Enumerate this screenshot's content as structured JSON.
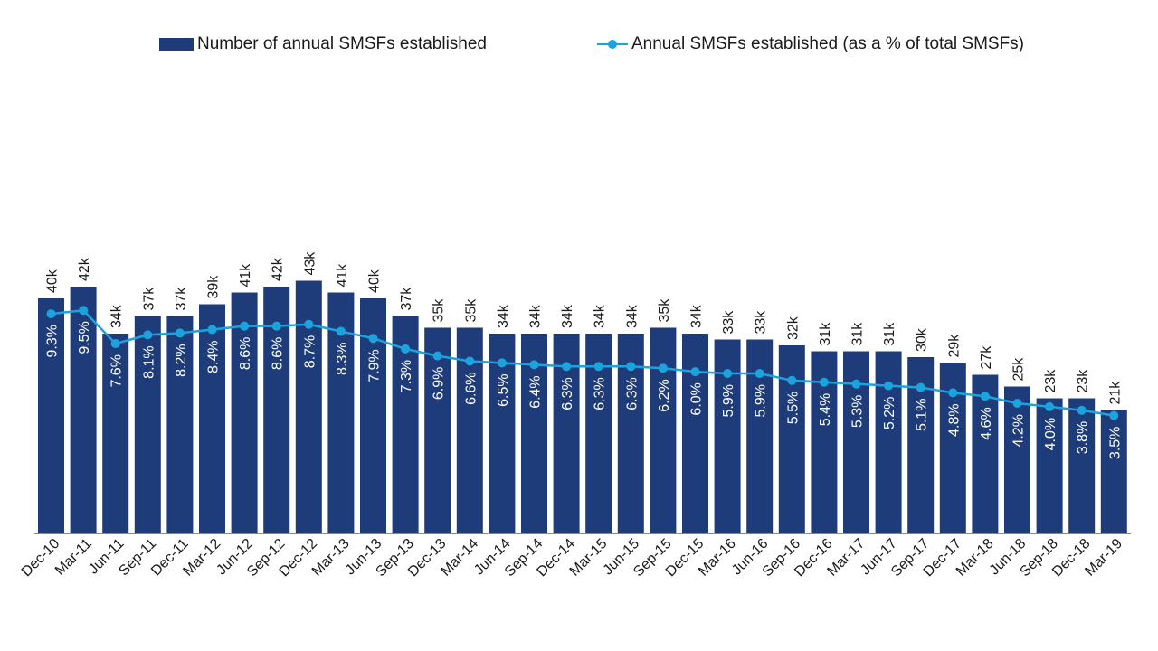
{
  "colors": {
    "bar": "#1f3c7a",
    "line": "#1aa3dc",
    "text": "#1a1a1a",
    "in_bar_text": "#ffffff",
    "axis": "#888888"
  },
  "legend": {
    "bar_label": "Number of annual SMSFs established",
    "line_label": "Annual SMSFs established (as a % of total SMSFs)"
  },
  "chart_data": {
    "type": "bar",
    "legend_position": "top",
    "grid": false,
    "categories": [
      "Dec-10",
      "Mar-11",
      "Jun-11",
      "Sep-11",
      "Dec-11",
      "Mar-12",
      "Jun-12",
      "Sep-12",
      "Dec-12",
      "Mar-13",
      "Jun-13",
      "Sep-13",
      "Dec-13",
      "Mar-14",
      "Jun-14",
      "Sep-14",
      "Dec-14",
      "Mar-15",
      "Jun-15",
      "Sep-15",
      "Dec-15",
      "Mar-16",
      "Jun-16",
      "Sep-16",
      "Dec-16",
      "Mar-17",
      "Jun-17",
      "Sep-17",
      "Dec-17",
      "Mar-18",
      "Jun-18",
      "Sep-18",
      "Dec-18",
      "Mar-19"
    ],
    "series": [
      {
        "name": "Number of annual SMSFs established",
        "type": "bar",
        "axis": "left",
        "values": [
          40,
          42,
          34,
          37,
          37,
          39,
          41,
          42,
          43,
          41,
          40,
          37,
          35,
          35,
          34,
          34,
          34,
          34,
          34,
          35,
          34,
          33,
          33,
          32,
          31,
          31,
          31,
          30,
          29,
          27,
          25,
          23,
          23,
          21
        ],
        "labels": [
          "40k",
          "42k",
          "34k",
          "37k",
          "37k",
          "39k",
          "41k",
          "42k",
          "43k",
          "41k",
          "40k",
          "37k",
          "35k",
          "35k",
          "34k",
          "34k",
          "34k",
          "34k",
          "34k",
          "35k",
          "34k",
          "33k",
          "33k",
          "32k",
          "31k",
          "31k",
          "31k",
          "30k",
          "29k",
          "27k",
          "25k",
          "23k",
          "23k",
          "21k"
        ]
      },
      {
        "name": "Annual SMSFs established (as a % of total SMSFs)",
        "type": "line",
        "axis": "right",
        "values": [
          9.3,
          9.5,
          7.6,
          8.1,
          8.2,
          8.4,
          8.6,
          8.6,
          8.7,
          8.3,
          7.9,
          7.3,
          6.9,
          6.6,
          6.5,
          6.4,
          6.3,
          6.3,
          6.3,
          6.2,
          6.0,
          5.9,
          5.9,
          5.5,
          5.4,
          5.3,
          5.2,
          5.1,
          4.8,
          4.6,
          4.2,
          4.0,
          3.8,
          3.5
        ],
        "labels": [
          "9.3%",
          "9.5%",
          "7.6%",
          "8.1%",
          "8.2%",
          "8.4%",
          "8.6%",
          "8.6%",
          "8.7%",
          "8.3%",
          "7.9%",
          "7.3%",
          "6.9%",
          "6.6%",
          "6.5%",
          "6.4%",
          "6.3%",
          "6.3%",
          "6.3%",
          "6.2%",
          "6.0%",
          "5.9%",
          "5.9%",
          "5.5%",
          "5.4%",
          "5.3%",
          "5.2%",
          "5.1%",
          "4.8%",
          "4.6%",
          "4.2%",
          "4.0%",
          "3.8%",
          "3.5%"
        ]
      }
    ]
  }
}
